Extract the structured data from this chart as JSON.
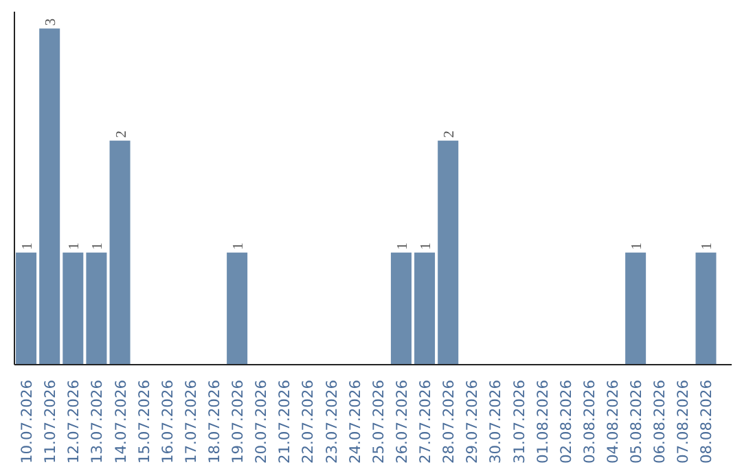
{
  "chart_data": {
    "type": "bar",
    "categories": [
      "10.07.2026",
      "11.07.2026",
      "12.07.2026",
      "13.07.2026",
      "14.07.2026",
      "15.07.2026",
      "16.07.2026",
      "17.07.2026",
      "18.07.2026",
      "19.07.2026",
      "20.07.2026",
      "21.07.2026",
      "22.07.2026",
      "23.07.2026",
      "24.07.2026",
      "25.07.2026",
      "26.07.2026",
      "27.07.2026",
      "28.07.2026",
      "29.07.2026",
      "30.07.2026",
      "31.07.2026",
      "01.08.2026",
      "02.08.2026",
      "03.08.2026",
      "04.08.2026",
      "05.08.2026",
      "06.08.2026",
      "07.08.2026",
      "08.08.2026"
    ],
    "values": [
      1,
      3,
      1,
      1,
      2,
      0,
      0,
      0,
      0,
      1,
      0,
      0,
      0,
      0,
      0,
      0,
      1,
      1,
      2,
      0,
      0,
      0,
      0,
      0,
      0,
      0,
      1,
      0,
      0,
      1
    ],
    "value_labels": [
      "1",
      "3",
      "1",
      "1",
      "2",
      null,
      null,
      null,
      null,
      "1",
      null,
      null,
      null,
      null,
      null,
      null,
      "1",
      "1",
      "2",
      null,
      null,
      null,
      null,
      null,
      null,
      null,
      "1",
      null,
      null,
      "1"
    ],
    "color": "#6b8cae",
    "grid": false
  }
}
